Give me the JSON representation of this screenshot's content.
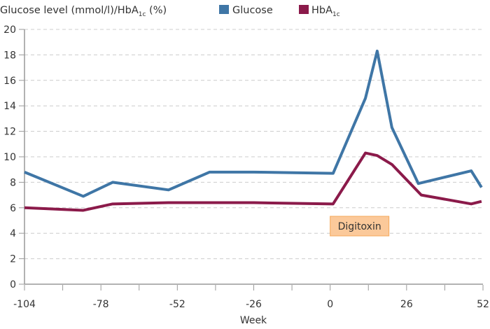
{
  "chart_data": {
    "type": "line",
    "title": "",
    "ylabel_main": "Glucose level (mmol/l)/HbA",
    "ylabel_sub": "1c",
    "ylabel_suffix": " (%)",
    "xlabel": "Week",
    "xlim": [
      -104,
      52
    ],
    "ylim": [
      0,
      20
    ],
    "xticks": [
      -104,
      -78,
      -52,
      -26,
      0,
      26,
      52
    ],
    "yticks": [
      0,
      2,
      4,
      6,
      8,
      10,
      12,
      14,
      16,
      18,
      20
    ],
    "grid": "horizontal dashed",
    "legend_placement": "top",
    "legend": {
      "glucose": "Glucose",
      "hba_main": "HbA",
      "hba_sub": "1c"
    },
    "annotation": {
      "text": "Digitoxin",
      "week": 0,
      "color": "#fbc99a"
    },
    "series": [
      {
        "name": "Glucose",
        "color": "#3f76a6",
        "x": [
          -104,
          -84,
          -74,
          -55,
          -41,
          -26,
          1,
          12,
          16,
          21,
          30,
          48,
          51.5
        ],
        "y": [
          8.8,
          6.9,
          8.0,
          7.4,
          8.8,
          8.8,
          8.7,
          14.6,
          18.3,
          12.3,
          7.9,
          8.9,
          7.6
        ]
      },
      {
        "name": "HbA1c",
        "color": "#8b1a4a",
        "x": [
          -104,
          -84,
          -74,
          -55,
          -26,
          1,
          12,
          16,
          21,
          31,
          48,
          51.5
        ],
        "y": [
          6.0,
          5.8,
          6.3,
          6.4,
          6.4,
          6.3,
          10.3,
          10.1,
          9.4,
          7.0,
          6.3,
          6.5
        ]
      }
    ]
  }
}
